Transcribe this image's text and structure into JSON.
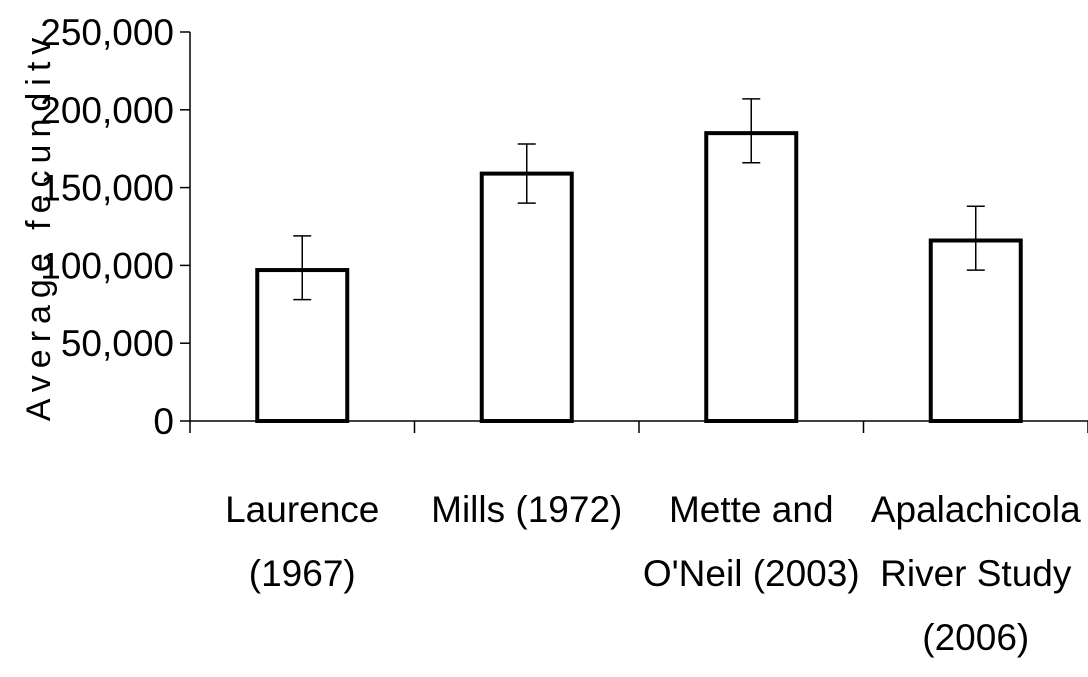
{
  "chart_data": {
    "type": "bar",
    "categories": [
      [
        "Laurence",
        "(1967)"
      ],
      [
        "Mills (1972)"
      ],
      [
        "Mette and",
        "O'Neil (2003)"
      ],
      [
        "Apalachicola",
        "River Study",
        "(2006)"
      ]
    ],
    "values": [
      97000,
      159000,
      185000,
      116000
    ],
    "error_low": [
      78000,
      140000,
      166000,
      97000
    ],
    "error_high": [
      119000,
      178000,
      207000,
      138000
    ],
    "ylabel": "Average fecunditv",
    "ylim": [
      0,
      250000
    ],
    "yticks": [
      0,
      50000,
      100000,
      150000,
      200000,
      250000
    ],
    "ytick_labels": [
      "0",
      "50,000",
      "100,000",
      "150,000",
      "200,000",
      "250,000"
    ],
    "grid": false,
    "bar_fill": "#ffffff",
    "bar_stroke": "#000000"
  }
}
